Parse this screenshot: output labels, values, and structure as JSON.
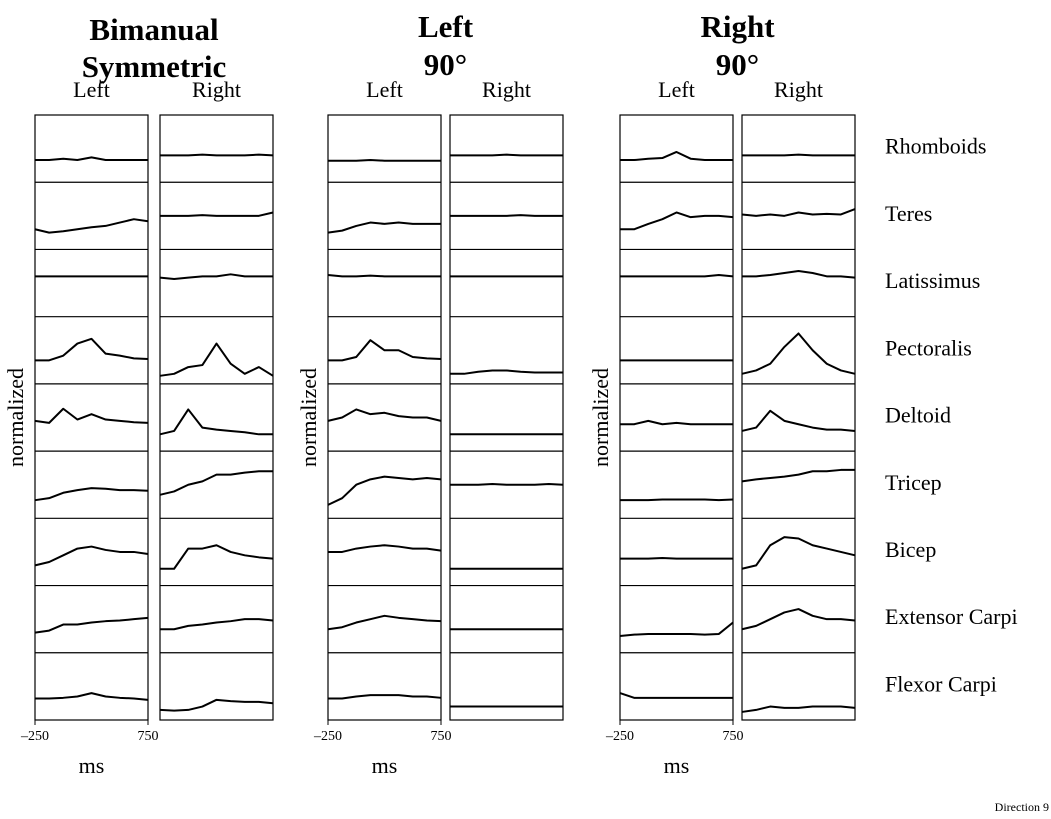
{
  "chart_data": {
    "type": "emg-grid",
    "direction": "Direction 9",
    "ylabel": "normalized",
    "xlabel": "ms",
    "xlim": [
      -250,
      750
    ],
    "xticks": [
      {
        "value": -250,
        "label": "–250"
      },
      750
    ],
    "ylim": [
      0,
      1
    ],
    "x": [
      -250,
      -125,
      0,
      125,
      250,
      375,
      500,
      625,
      750
    ],
    "muscles": [
      "Rhomboids",
      "Teres",
      "Latissimus",
      "Pectoralis",
      "Deltoid",
      "Tricep",
      "Bicep",
      "Extensor Carpi",
      "Flexor Carpi"
    ],
    "groups": [
      {
        "title": [
          "Bimanual",
          "Symmetric"
        ],
        "columns": [
          {
            "label": "Left",
            "traces": [
              [
                0.33,
                0.33,
                0.35,
                0.33,
                0.37,
                0.33,
                0.33,
                0.33,
                0.33
              ],
              [
                0.3,
                0.25,
                0.27,
                0.3,
                0.33,
                0.35,
                0.4,
                0.45,
                0.42
              ],
              [
                0.6,
                0.6,
                0.6,
                0.6,
                0.6,
                0.6,
                0.6,
                0.6,
                0.6
              ],
              [
                0.35,
                0.35,
                0.42,
                0.6,
                0.67,
                0.45,
                0.42,
                0.38,
                0.37
              ],
              [
                0.45,
                0.42,
                0.63,
                0.47,
                0.55,
                0.47,
                0.45,
                0.43,
                0.42
              ],
              [
                0.27,
                0.3,
                0.38,
                0.42,
                0.45,
                0.44,
                0.42,
                0.42,
                0.41
              ],
              [
                0.3,
                0.35,
                0.45,
                0.55,
                0.58,
                0.53,
                0.5,
                0.5,
                0.47
              ],
              [
                0.3,
                0.33,
                0.42,
                0.42,
                0.45,
                0.47,
                0.48,
                0.5,
                0.52
              ],
              [
                0.32,
                0.32,
                0.33,
                0.35,
                0.4,
                0.35,
                0.33,
                0.32,
                0.3
              ]
            ]
          },
          {
            "label": "Right",
            "traces": [
              [
                0.4,
                0.4,
                0.4,
                0.41,
                0.4,
                0.4,
                0.4,
                0.41,
                0.4
              ],
              [
                0.5,
                0.5,
                0.5,
                0.51,
                0.5,
                0.5,
                0.5,
                0.5,
                0.55
              ],
              [
                0.58,
                0.56,
                0.58,
                0.6,
                0.6,
                0.63,
                0.6,
                0.6,
                0.6
              ],
              [
                0.12,
                0.15,
                0.25,
                0.28,
                0.6,
                0.3,
                0.15,
                0.25,
                0.12
              ],
              [
                0.25,
                0.3,
                0.62,
                0.35,
                0.32,
                0.3,
                0.28,
                0.25,
                0.25
              ],
              [
                0.35,
                0.4,
                0.5,
                0.55,
                0.65,
                0.65,
                0.68,
                0.7,
                0.7
              ],
              [
                0.25,
                0.25,
                0.55,
                0.55,
                0.6,
                0.5,
                0.45,
                0.42,
                0.4
              ],
              [
                0.35,
                0.35,
                0.4,
                0.42,
                0.45,
                0.47,
                0.5,
                0.5,
                0.48
              ],
              [
                0.15,
                0.14,
                0.15,
                0.2,
                0.3,
                0.28,
                0.27,
                0.27,
                0.25
              ]
            ]
          }
        ]
      },
      {
        "title": [
          "Left",
          "90°"
        ],
        "columns": [
          {
            "label": "Left",
            "traces": [
              [
                0.32,
                0.32,
                0.32,
                0.33,
                0.32,
                0.32,
                0.32,
                0.32,
                0.32
              ],
              [
                0.25,
                0.28,
                0.35,
                0.4,
                0.38,
                0.4,
                0.38,
                0.38,
                0.38
              ],
              [
                0.62,
                0.6,
                0.6,
                0.61,
                0.6,
                0.6,
                0.6,
                0.6,
                0.6
              ],
              [
                0.35,
                0.35,
                0.4,
                0.65,
                0.5,
                0.5,
                0.4,
                0.38,
                0.37
              ],
              [
                0.45,
                0.5,
                0.62,
                0.55,
                0.57,
                0.52,
                0.5,
                0.5,
                0.45
              ],
              [
                0.2,
                0.3,
                0.5,
                0.58,
                0.62,
                0.6,
                0.58,
                0.6,
                0.58
              ],
              [
                0.5,
                0.5,
                0.55,
                0.58,
                0.6,
                0.58,
                0.55,
                0.55,
                0.52
              ],
              [
                0.35,
                0.38,
                0.45,
                0.5,
                0.55,
                0.52,
                0.5,
                0.48,
                0.47
              ],
              [
                0.32,
                0.32,
                0.35,
                0.37,
                0.37,
                0.37,
                0.35,
                0.35,
                0.33
              ]
            ]
          },
          {
            "label": "Right",
            "traces": [
              [
                0.4,
                0.4,
                0.4,
                0.4,
                0.41,
                0.4,
                0.4,
                0.4,
                0.4
              ],
              [
                0.5,
                0.5,
                0.5,
                0.5,
                0.5,
                0.51,
                0.5,
                0.5,
                0.5
              ],
              [
                0.6,
                0.6,
                0.6,
                0.6,
                0.6,
                0.6,
                0.6,
                0.6,
                0.6
              ],
              [
                0.15,
                0.15,
                0.18,
                0.2,
                0.2,
                0.18,
                0.17,
                0.17,
                0.17
              ],
              [
                0.25,
                0.25,
                0.25,
                0.25,
                0.25,
                0.25,
                0.25,
                0.25,
                0.25
              ],
              [
                0.5,
                0.5,
                0.5,
                0.51,
                0.5,
                0.5,
                0.5,
                0.51,
                0.5
              ],
              [
                0.25,
                0.25,
                0.25,
                0.25,
                0.25,
                0.25,
                0.25,
                0.25,
                0.25
              ],
              [
                0.35,
                0.35,
                0.35,
                0.35,
                0.35,
                0.35,
                0.35,
                0.35,
                0.35
              ],
              [
                0.2,
                0.2,
                0.2,
                0.2,
                0.2,
                0.2,
                0.2,
                0.2,
                0.2
              ]
            ]
          }
        ]
      },
      {
        "title": [
          "Right",
          "90°"
        ],
        "columns": [
          {
            "label": "Left",
            "traces": [
              [
                0.33,
                0.33,
                0.35,
                0.36,
                0.45,
                0.35,
                0.33,
                0.33,
                0.33
              ],
              [
                0.3,
                0.3,
                0.38,
                0.45,
                0.55,
                0.48,
                0.5,
                0.5,
                0.48
              ],
              [
                0.6,
                0.6,
                0.6,
                0.6,
                0.6,
                0.6,
                0.6,
                0.62,
                0.6
              ],
              [
                0.35,
                0.35,
                0.35,
                0.35,
                0.35,
                0.35,
                0.35,
                0.35,
                0.35
              ],
              [
                0.4,
                0.4,
                0.45,
                0.4,
                0.42,
                0.4,
                0.4,
                0.4,
                0.4
              ],
              [
                0.27,
                0.27,
                0.27,
                0.28,
                0.28,
                0.28,
                0.28,
                0.27,
                0.28
              ],
              [
                0.4,
                0.4,
                0.4,
                0.41,
                0.4,
                0.4,
                0.4,
                0.4,
                0.4
              ],
              [
                0.25,
                0.27,
                0.28,
                0.28,
                0.28,
                0.28,
                0.27,
                0.28,
                0.45
              ],
              [
                0.4,
                0.33,
                0.33,
                0.33,
                0.33,
                0.33,
                0.33,
                0.33,
                0.33
              ]
            ]
          },
          {
            "label": "Right",
            "traces": [
              [
                0.4,
                0.4,
                0.4,
                0.4,
                0.41,
                0.4,
                0.4,
                0.4,
                0.4
              ],
              [
                0.52,
                0.5,
                0.52,
                0.5,
                0.55,
                0.52,
                0.53,
                0.52,
                0.6
              ],
              [
                0.6,
                0.6,
                0.62,
                0.65,
                0.68,
                0.65,
                0.6,
                0.6,
                0.58
              ],
              [
                0.15,
                0.2,
                0.3,
                0.55,
                0.75,
                0.5,
                0.3,
                0.2,
                0.15
              ],
              [
                0.3,
                0.35,
                0.6,
                0.45,
                0.4,
                0.35,
                0.32,
                0.32,
                0.3
              ],
              [
                0.55,
                0.58,
                0.6,
                0.62,
                0.65,
                0.7,
                0.7,
                0.72,
                0.72
              ],
              [
                0.25,
                0.3,
                0.6,
                0.72,
                0.7,
                0.6,
                0.55,
                0.5,
                0.45
              ],
              [
                0.35,
                0.4,
                0.5,
                0.6,
                0.65,
                0.55,
                0.5,
                0.5,
                0.48
              ],
              [
                0.12,
                0.15,
                0.2,
                0.18,
                0.18,
                0.2,
                0.2,
                0.2,
                0.18
              ]
            ]
          }
        ]
      }
    ]
  }
}
